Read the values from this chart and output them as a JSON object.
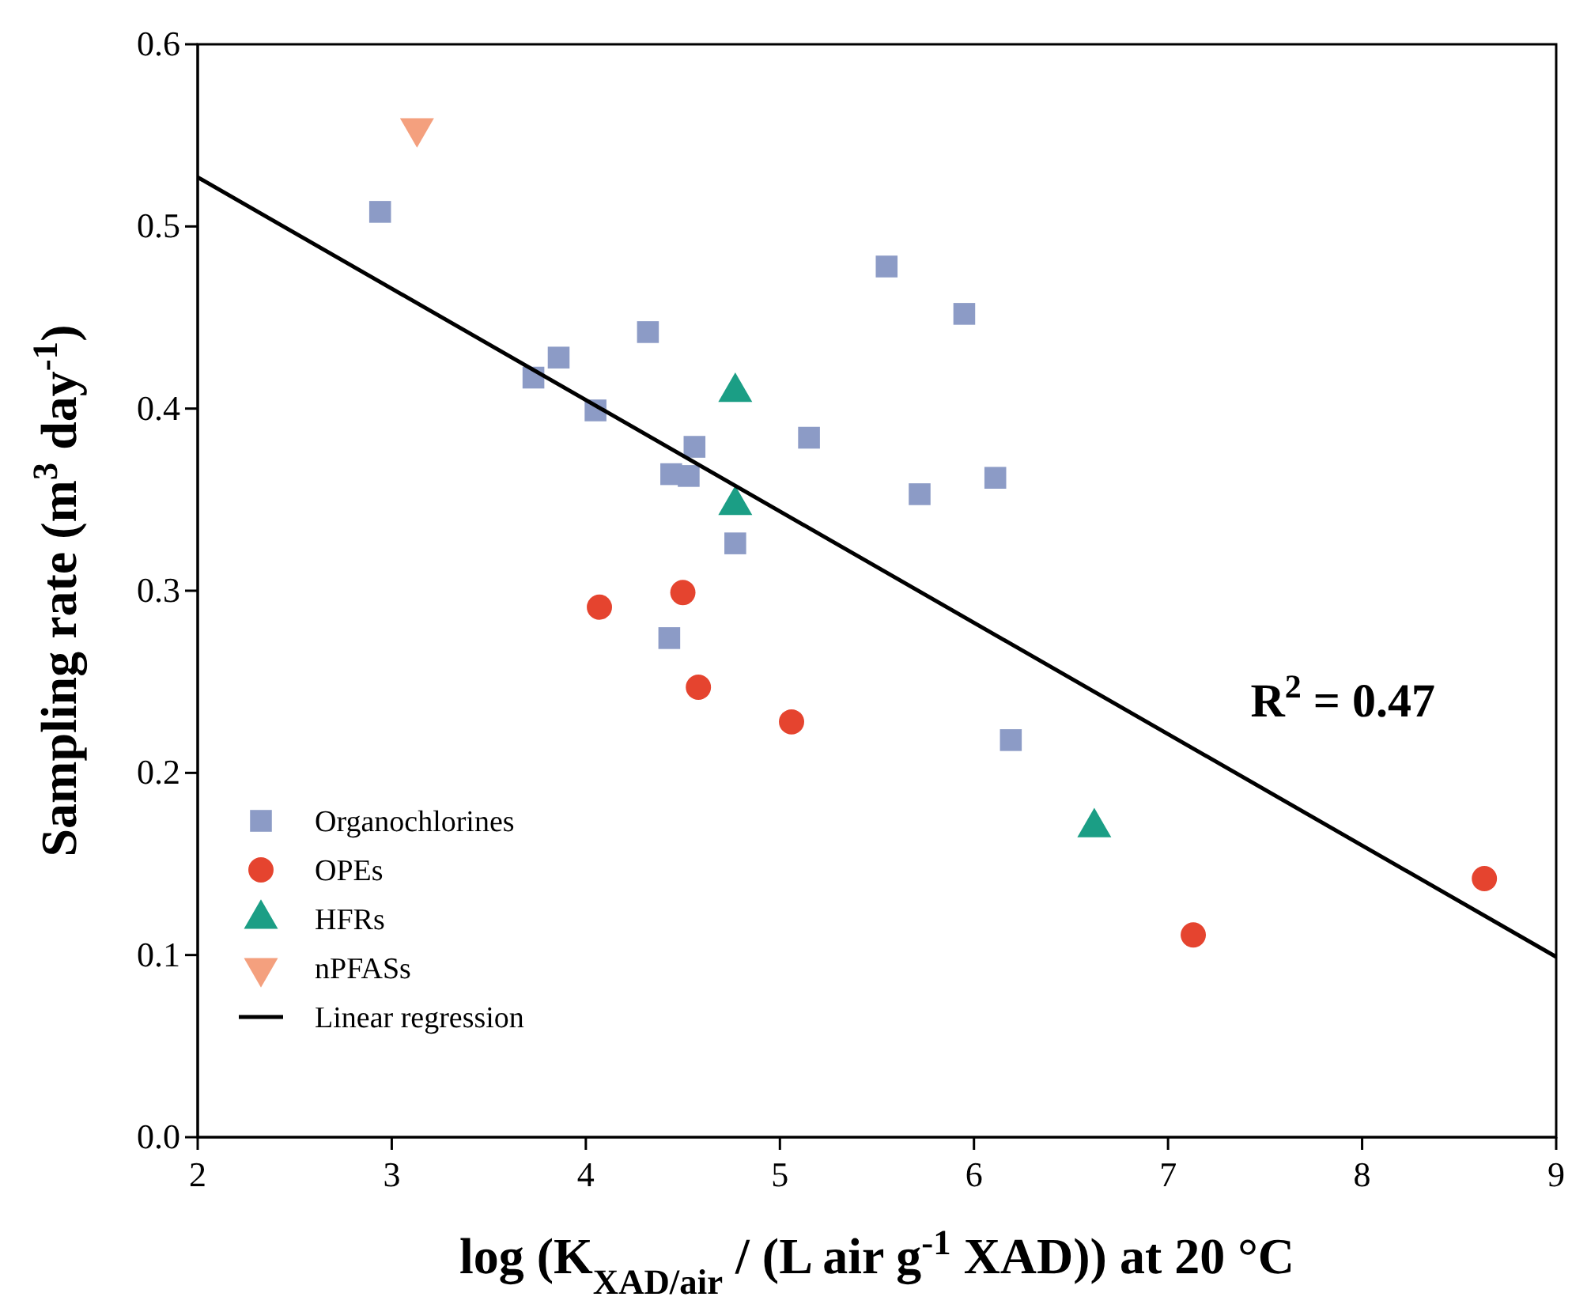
{
  "chart_data": {
    "type": "scatter",
    "xlabel": "log (K$_{XAD/air}$ / (L air g$^{-1}$ XAD)) at 20 °C",
    "ylabel": "Sampling rate (m$^{3}$ day$^{-1}$)",
    "xlim": [
      2,
      9
    ],
    "xticks": [
      2,
      3,
      4,
      5,
      6,
      7,
      8,
      9
    ],
    "ylim": [
      0,
      0.6
    ],
    "yticks": [
      {
        "value": 0,
        "label": "0.0"
      },
      {
        "value": 0.1,
        "label": "0.1"
      },
      {
        "value": 0.2,
        "label": "0.2"
      },
      {
        "value": 0.3,
        "label": "0.3"
      },
      {
        "value": 0.4,
        "label": "0.4"
      },
      {
        "value": 0.5,
        "label": "0.5"
      },
      {
        "value": 0.6,
        "label": "0.6"
      }
    ],
    "grid": false,
    "legend": "bottom left",
    "annotations": [
      "R$^{2}$ = 0.47"
    ],
    "series": [
      {
        "name": "Organochlorines",
        "color": "#8c9bc6",
        "marker": "square",
        "x": [
          2.94,
          3.73,
          3.86,
          4.05,
          4.32,
          4.44,
          4.53,
          4.56,
          4.43,
          4.77,
          5.15,
          5.55,
          5.72,
          5.95,
          6.11,
          6.19
        ],
        "values": [
          0.508,
          0.417,
          0.428,
          0.399,
          0.442,
          0.364,
          0.363,
          0.379,
          0.274,
          0.326,
          0.384,
          0.478,
          0.353,
          0.452,
          0.362,
          0.218
        ]
      },
      {
        "name": "OPEs",
        "color": "#e5442f",
        "marker": "circle",
        "x": [
          4.07,
          4.5,
          4.58,
          5.06,
          7.13,
          8.63
        ],
        "values": [
          0.291,
          0.299,
          0.247,
          0.228,
          0.111,
          0.142
        ]
      },
      {
        "name": "HFRs",
        "color": "#1b9e85",
        "marker": "triangle",
        "x": [
          4.77,
          4.77,
          6.62
        ],
        "values": [
          0.409,
          0.347,
          0.17
        ]
      },
      {
        "name": "nPFASs",
        "color": "#f4a07e",
        "marker": "triangle-down",
        "x": [
          3.13
        ],
        "values": [
          0.554
        ]
      },
      {
        "name": "Linear regression",
        "type": "line",
        "color": "#000000",
        "marker": "none",
        "line_style": "solid",
        "x": [
          2,
          9
        ],
        "values": [
          0.527,
          0.099
        ]
      }
    ]
  }
}
